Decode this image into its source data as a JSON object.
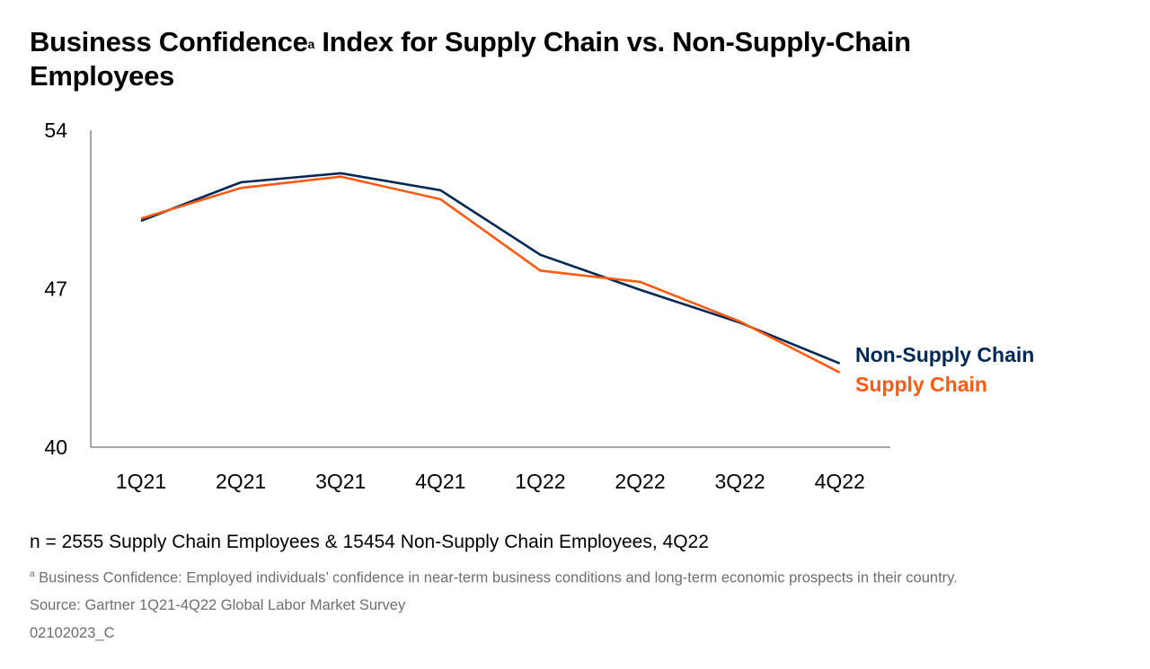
{
  "title": {
    "main_before": "Business Confidence",
    "superscript": "a",
    "main_after": " Index for Supply Chain vs. Non-Supply-Chain Employees"
  },
  "chart_data": {
    "type": "line",
    "categories": [
      "1Q21",
      "2Q21",
      "3Q21",
      "4Q21",
      "1Q22",
      "2Q22",
      "3Q22",
      "4Q22"
    ],
    "ylim": [
      40,
      54
    ],
    "yticks": [
      "40",
      "47",
      "54"
    ],
    "grid": false,
    "legend_placement": "right (end-of-line labels)",
    "series": [
      {
        "name": "Non-Supply Chain",
        "color": "#002856",
        "values": [
          50.0,
          51.7,
          52.1,
          51.35,
          48.5,
          46.95,
          45.5,
          43.7
        ]
      },
      {
        "name": "Supply Chain",
        "color": "#ff5a0f",
        "values": [
          50.1,
          51.45,
          51.95,
          50.95,
          47.8,
          47.3,
          45.55,
          43.3
        ]
      }
    ]
  },
  "sample_note": "n = 2555 Supply Chain Employees & 15454 Non-Supply Chain Employees, 4Q22",
  "footnote": {
    "marker": "a",
    "text": " Business Confidence: Employed individuals’ confidence in near-term business conditions and long-term economic prospects in their country."
  },
  "source": "Source: Gartner 1Q21-4Q22 Global Labor Market Survey",
  "code": "02102023_C"
}
